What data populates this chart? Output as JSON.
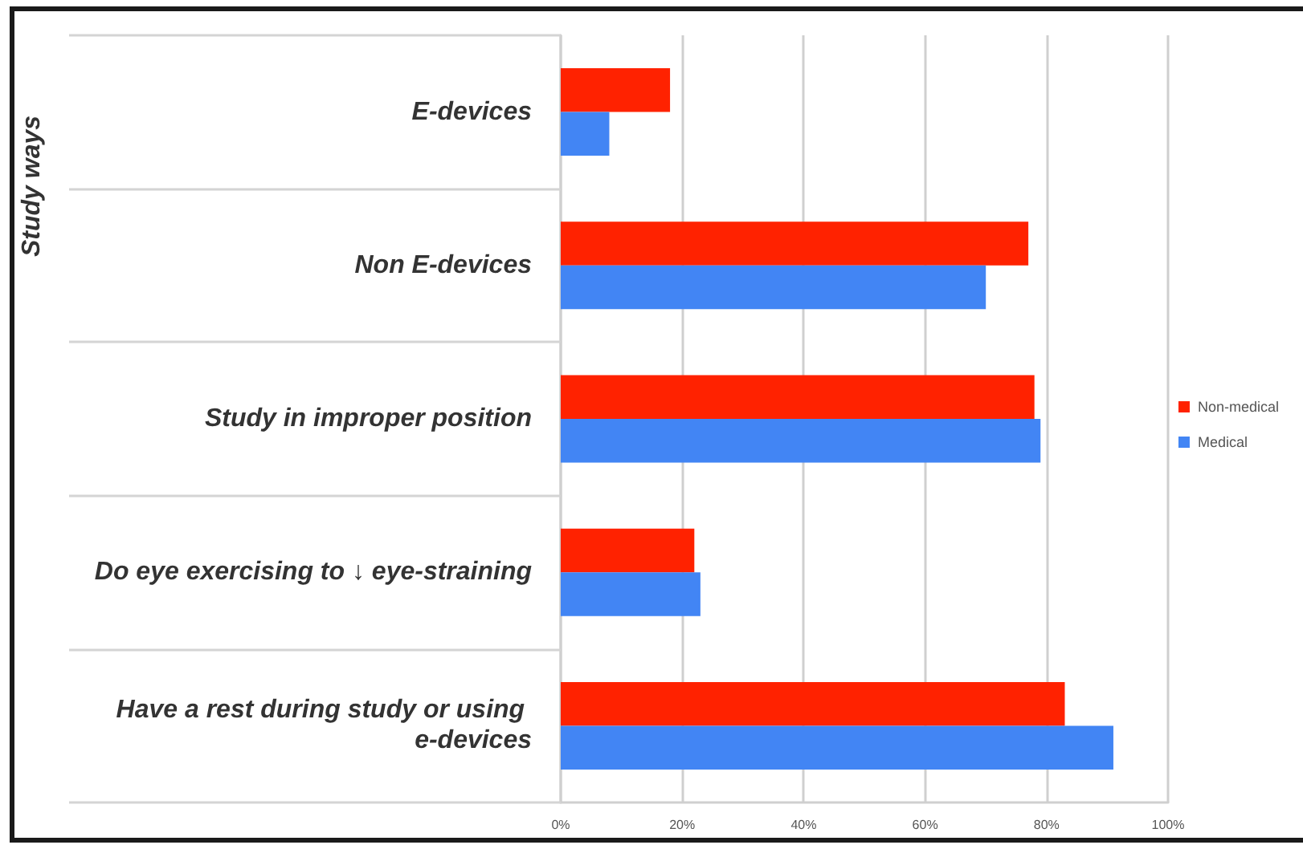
{
  "chart_data": {
    "type": "bar",
    "orientation": "horizontal",
    "categories": [
      "E-devices",
      "Non E-devices",
      "Study in improper position",
      "Do eye exercising to ↓ eye-straining",
      "Have a rest during study or using e-devices"
    ],
    "series": [
      {
        "name": "Non-medical",
        "color": "#ff2200",
        "values": [
          18,
          77,
          78,
          22,
          83
        ]
      },
      {
        "name": "Medical",
        "color": "#4285f4",
        "values": [
          8,
          70,
          79,
          23,
          91
        ]
      }
    ],
    "xlim": [
      0,
      100
    ],
    "xticks": [
      {
        "value": 0,
        "label": "0%"
      },
      {
        "value": 20,
        "label": "20%"
      },
      {
        "value": 40,
        "label": "40%"
      },
      {
        "value": 60,
        "label": "60%"
      },
      {
        "value": 80,
        "label": "80%"
      },
      {
        "value": 100,
        "label": "100%"
      }
    ],
    "grid": "x",
    "legend": "right",
    "annotations": [
      "Study ways"
    ]
  }
}
